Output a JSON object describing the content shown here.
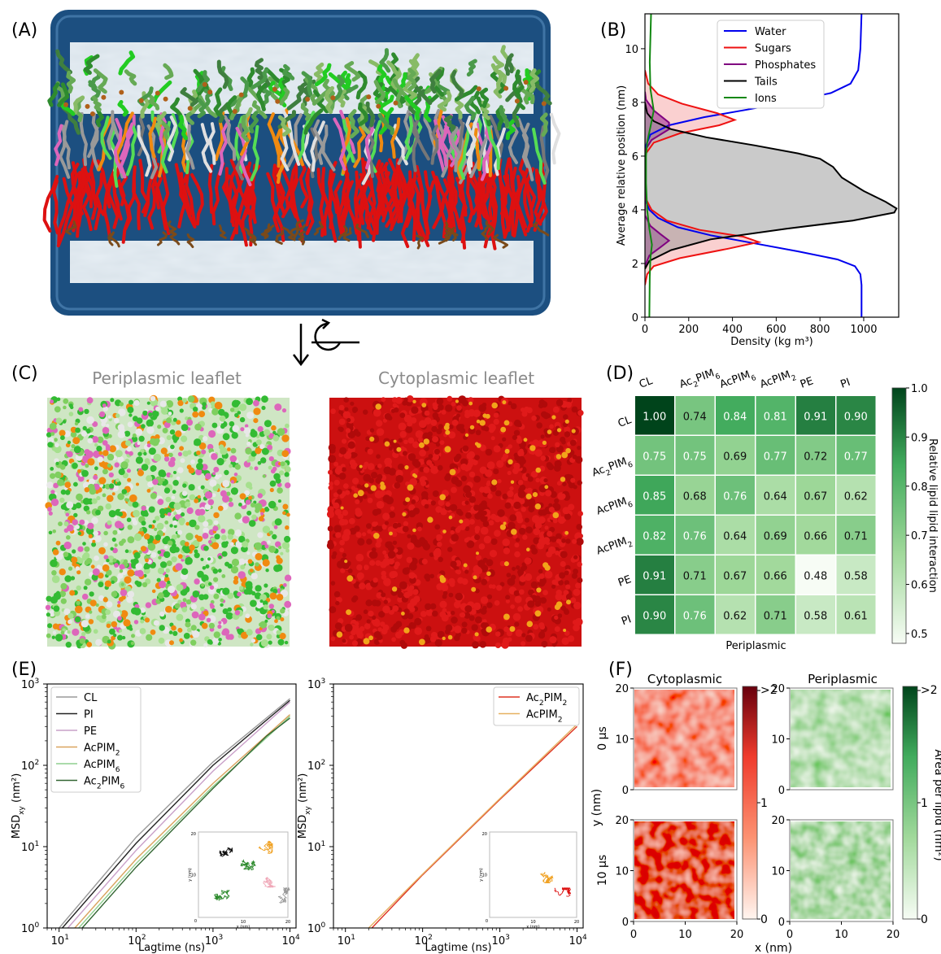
{
  "panels": {
    "A": {
      "letter": "(A)"
    },
    "B": {
      "letter": "(B)"
    },
    "C": {
      "letter": "(C)",
      "left_title": "Periplasmic leaflet",
      "right_title": "Cytoplasmic leaflet"
    },
    "D": {
      "letter": "(D)"
    },
    "E": {
      "letter": "(E)"
    },
    "F": {
      "letter": "(F)"
    }
  },
  "colors": {
    "water": "#0000ee",
    "sugars": "#ee1111",
    "phosphates": "#800080",
    "tails": "#000000",
    "ions": "#118811",
    "membrane_water": "#d5dfe8",
    "membrane_box": "#1c4f80",
    "lipid_red": "#dd1111",
    "lipid_green": "#33bb33",
    "lipid_orange": "#f08a10",
    "lipid_pink": "#dd66bb",
    "lipid_grey": "#999999"
  },
  "chart_data": [
    {
      "id": "B",
      "type": "line",
      "xlabel": "Density (kg m³)",
      "ylabel": "Average relative position (nm)",
      "xlim": [
        0,
        1160
      ],
      "ylim": [
        0,
        11.3
      ],
      "xticks": [
        0,
        200,
        400,
        600,
        800,
        1000
      ],
      "yticks": [
        0,
        2,
        4,
        6,
        8,
        10
      ],
      "legend_position": "top-right",
      "series": [
        {
          "name": "Water",
          "color": "#0000ee",
          "filled": false,
          "points": [
            [
              990,
              0
            ],
            [
              990,
              1.2
            ],
            [
              985,
              1.6
            ],
            [
              960,
              1.9
            ],
            [
              880,
              2.15
            ],
            [
              700,
              2.45
            ],
            [
              500,
              2.75
            ],
            [
              300,
              3.05
            ],
            [
              150,
              3.35
            ],
            [
              60,
              3.7
            ],
            [
              20,
              4.0
            ],
            [
              5,
              4.3
            ],
            [
              0,
              4.6
            ],
            [
              0,
              6.0
            ],
            [
              5,
              6.4
            ],
            [
              25,
              6.8
            ],
            [
              110,
              7.15
            ],
            [
              270,
              7.45
            ],
            [
              480,
              7.75
            ],
            [
              680,
              8.05
            ],
            [
              850,
              8.35
            ],
            [
              940,
              8.7
            ],
            [
              975,
              9.2
            ],
            [
              985,
              10
            ],
            [
              990,
              11.3
            ]
          ]
        },
        {
          "name": "Sugars",
          "color": "#ee1111",
          "filled": true,
          "points": [
            [
              0,
              1.2
            ],
            [
              10,
              1.6
            ],
            [
              40,
              1.9
            ],
            [
              160,
              2.2
            ],
            [
              380,
              2.55
            ],
            [
              520,
              2.8
            ],
            [
              450,
              3.0
            ],
            [
              250,
              3.25
            ],
            [
              100,
              3.6
            ],
            [
              30,
              4.0
            ],
            [
              5,
              4.4
            ],
            [
              0,
              4.8
            ],
            [
              0,
              5.6
            ],
            [
              5,
              6.1
            ],
            [
              40,
              6.5
            ],
            [
              160,
              6.85
            ],
            [
              340,
              7.15
            ],
            [
              410,
              7.35
            ],
            [
              330,
              7.6
            ],
            [
              170,
              7.95
            ],
            [
              60,
              8.3
            ],
            [
              15,
              8.7
            ],
            [
              0,
              9.2
            ]
          ]
        },
        {
          "name": "Phosphates",
          "color": "#800080",
          "filled": true,
          "points": [
            [
              0,
              1.9
            ],
            [
              20,
              2.3
            ],
            [
              70,
              2.6
            ],
            [
              110,
              2.85
            ],
            [
              70,
              3.1
            ],
            [
              25,
              3.4
            ],
            [
              0,
              3.8
            ],
            [
              0,
              6.2
            ],
            [
              30,
              6.6
            ],
            [
              110,
              7.0
            ],
            [
              110,
              7.25
            ],
            [
              40,
              7.7
            ],
            [
              5,
              8.1
            ],
            [
              0,
              8.4
            ]
          ]
        },
        {
          "name": "Tails",
          "color": "#000000",
          "filled": true,
          "points": [
            [
              0,
              1.8
            ],
            [
              20,
              2.1
            ],
            [
              120,
              2.5
            ],
            [
              300,
              2.9
            ],
            [
              650,
              3.3
            ],
            [
              950,
              3.6
            ],
            [
              1140,
              3.9
            ],
            [
              1150,
              4.05
            ],
            [
              1100,
              4.3
            ],
            [
              1000,
              4.7
            ],
            [
              900,
              5.2
            ],
            [
              860,
              5.6
            ],
            [
              800,
              5.9
            ],
            [
              700,
              6.1
            ],
            [
              500,
              6.4
            ],
            [
              280,
              6.7
            ],
            [
              120,
              7.0
            ],
            [
              40,
              7.3
            ],
            [
              10,
              7.6
            ],
            [
              0,
              8.0
            ]
          ]
        },
        {
          "name": "Ions",
          "color": "#118811",
          "filled": false,
          "points": [
            [
              20,
              0
            ],
            [
              22,
              1.5
            ],
            [
              25,
              2.2
            ],
            [
              32,
              2.7
            ],
            [
              20,
              3.3
            ],
            [
              10,
              4.0
            ],
            [
              5,
              5.0
            ],
            [
              5,
              6.0
            ],
            [
              10,
              6.5
            ],
            [
              28,
              7.2
            ],
            [
              40,
              7.7
            ],
            [
              25,
              8.5
            ],
            [
              22,
              9.5
            ],
            [
              28,
              11.3
            ]
          ]
        }
      ]
    },
    {
      "id": "D",
      "type": "heatmap",
      "columns": [
        "CL",
        "Ac2PIM6",
        "AcPIM6",
        "AcPIM2",
        "PE",
        "PI"
      ],
      "column_labels": [
        {
          "base": "CL"
        },
        {
          "base": "Ac",
          "sub": "2",
          "rest": "PIM",
          "sub2": "6"
        },
        {
          "base": "AcPIM",
          "sub": "6"
        },
        {
          "base": "AcPIM",
          "sub": "2"
        },
        {
          "base": "PE"
        },
        {
          "base": "PI"
        }
      ],
      "rows": [
        "CL",
        "Ac2PIM6",
        "AcPIM6",
        "AcPIM2",
        "PE",
        "PI"
      ],
      "row_labels": [
        {
          "base": "CL"
        },
        {
          "base": "Ac",
          "sub": "2",
          "rest": "PIM",
          "sub2": "6"
        },
        {
          "base": "AcPIM",
          "sub": "6"
        },
        {
          "base": "AcPIM",
          "sub": "2"
        },
        {
          "base": "PE"
        },
        {
          "base": "PI"
        }
      ],
      "values": [
        [
          "1.00",
          "0.74",
          "0.84",
          "0.81",
          "0.91",
          "0.90"
        ],
        [
          "0.75",
          "0.75",
          "0.69",
          "0.77",
          "0.72",
          "0.77"
        ],
        [
          "0.85",
          "0.68",
          "0.76",
          "0.64",
          "0.67",
          "0.62"
        ],
        [
          "0.82",
          "0.76",
          "0.64",
          "0.69",
          "0.66",
          "0.71"
        ],
        [
          "0.91",
          "0.71",
          "0.67",
          "0.66",
          "0.48",
          "0.58"
        ],
        [
          "0.90",
          "0.76",
          "0.62",
          "0.71",
          "0.58",
          "0.61"
        ]
      ],
      "xlabel": "Periplasmic",
      "colorbar_label": "Relative lipid lipid interaction",
      "colorbar_range": [
        0.48,
        1.0
      ],
      "colorbar_ticks": [
        "0.5",
        "0.6",
        "0.7",
        "0.8",
        "0.9",
        "1.0"
      ]
    },
    {
      "id": "E-left",
      "type": "line",
      "scale": "log-log",
      "xlabel": "Lagtime (ns)",
      "ylabel": "MSDxy (nm²)",
      "xlim": [
        7,
        12000
      ],
      "ylim": [
        1,
        1000
      ],
      "xticks": [
        "10",
        "10",
        "10",
        "10"
      ],
      "xtick_exps": [
        "1",
        "2",
        "3",
        "4"
      ],
      "yticks": [
        "10",
        "10",
        "10",
        "10"
      ],
      "ytick_exps": [
        "0",
        "1",
        "2",
        "3"
      ],
      "legend_position": "top-left",
      "series": [
        {
          "name": "CL",
          "label": {
            "base": "CL"
          },
          "color": "#9a9a9a",
          "points": [
            [
              10,
              1
            ],
            [
              100,
              13
            ],
            [
              1000,
              110
            ],
            [
              10000,
              660
            ]
          ]
        },
        {
          "name": "PI",
          "label": {
            "base": "PI"
          },
          "color": "#222222",
          "points": [
            [
              11,
              1
            ],
            [
              100,
              11
            ],
            [
              1000,
              100
            ],
            [
              10000,
              630
            ]
          ]
        },
        {
          "name": "PE",
          "label": {
            "base": "PE"
          },
          "color": "#c9a0c9",
          "points": [
            [
              13,
              1
            ],
            [
              100,
              9
            ],
            [
              1000,
              85
            ],
            [
              10000,
              600
            ]
          ]
        },
        {
          "name": "AcPIM2",
          "label": {
            "base": "AcPIM",
            "sub": "2"
          },
          "color": "#d9a35e",
          "points": [
            [
              16,
              1
            ],
            [
              100,
              7
            ],
            [
              1000,
              60
            ],
            [
              10000,
              420
            ]
          ]
        },
        {
          "name": "AcPIM6",
          "label": {
            "base": "AcPIM",
            "sub": "6"
          },
          "color": "#8fcf8f",
          "points": [
            [
              18,
              1
            ],
            [
              100,
              6.2
            ],
            [
              1000,
              55
            ],
            [
              10000,
              400
            ]
          ]
        },
        {
          "name": "Ac2PIM6",
          "label": {
            "base": "Ac",
            "sub": "2",
            "rest": "PIM",
            "sub2": "6"
          },
          "color": "#336633",
          "points": [
            [
              20,
              1
            ],
            [
              100,
              5.6
            ],
            [
              1000,
              52
            ],
            [
              5000,
              230
            ],
            [
              10000,
              380
            ]
          ]
        }
      ]
    },
    {
      "id": "E-right",
      "type": "line",
      "scale": "log-log",
      "xlabel": "Lagtime (ns)",
      "ylabel": "MSDxy (nm²)",
      "xlim": [
        7,
        12000
      ],
      "ylim": [
        1,
        1000
      ],
      "xticks": [
        "10",
        "10",
        "10",
        "10"
      ],
      "xtick_exps": [
        "1",
        "2",
        "3",
        "4"
      ],
      "yticks": [
        "10",
        "10",
        "10",
        "10"
      ],
      "ytick_exps": [
        "0",
        "1",
        "2",
        "3"
      ],
      "legend_position": "top-right",
      "series": [
        {
          "name": "Ac2PIM2",
          "label": {
            "base": "Ac",
            "sub": "2",
            "rest": "PIM",
            "sub2": "2"
          },
          "color": "#dd3322",
          "points": [
            [
              22,
              1
            ],
            [
              100,
              4.5
            ],
            [
              1000,
              38
            ],
            [
              10000,
              300
            ]
          ]
        },
        {
          "name": "AcPIM2",
          "label": {
            "base": "AcPIM",
            "sub": "2"
          },
          "color": "#e6b060",
          "points": [
            [
              20,
              1
            ],
            [
              100,
              4.6
            ],
            [
              1000,
              39
            ],
            [
              10000,
              320
            ]
          ]
        }
      ]
    },
    {
      "id": "F",
      "type": "heatmap",
      "column_titles": [
        "Cytoplasmic",
        "Periplasmic"
      ],
      "row_titles": [
        "0 μs",
        "10 μs"
      ],
      "xlabel": "x (nm)",
      "ylabel": "y (nm)",
      "axis_ticks": [
        "0",
        "10",
        "20"
      ],
      "colorbar_ticks": [
        "0",
        "1",
        ">2"
      ],
      "colorbar_label": "Area per lipid (nm²)"
    }
  ],
  "inset_ticks": {
    "zero": "0",
    "ten": "10",
    "twenty": "20",
    "x_label": "x (nm)",
    "y_label": "y (nm)"
  }
}
